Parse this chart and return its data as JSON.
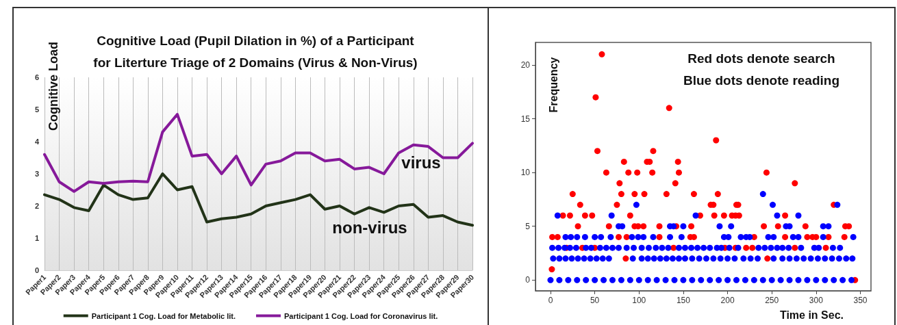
{
  "chart_data": [
    {
      "type": "line",
      "title": "Cognitive Load (Pupil Dilation in %) of a Participant\nfor Literture Triage of 2 Domains (Virus & Non-Virus)",
      "ylabel": "Cognitive Load",
      "categories": [
        "Paper1",
        "Paper2",
        "Paper3",
        "Paper4",
        "Paper5",
        "Paper6",
        "Paper7",
        "Paper8",
        "Paper9",
        "Paper10",
        "Paper11",
        "Paper12",
        "Paper13",
        "Paper14",
        "Paper15",
        "Paper16",
        "Paper17",
        "Paper18",
        "Paper19",
        "Paper20",
        "Paper21",
        "Paper22",
        "Paper23",
        "Paper24",
        "Paper25",
        "Paper26",
        "Paper27",
        "Paper28",
        "Paper29",
        "Paper30"
      ],
      "series": [
        {
          "name": "Participant 1 Cog. Load for Metabolic lit.",
          "color": "#223318",
          "values": [
            2.35,
            2.2,
            1.95,
            1.85,
            2.65,
            2.35,
            2.2,
            2.25,
            3.0,
            2.5,
            2.6,
            1.5,
            1.6,
            1.65,
            1.75,
            2.0,
            2.1,
            2.2,
            2.35,
            1.9,
            2.0,
            1.75,
            1.95,
            1.8,
            2.0,
            2.05,
            1.65,
            1.7,
            1.5,
            1.4
          ]
        },
        {
          "name": "Participant 1 Cog. Load for Coronavirus lit.",
          "color": "#86199a",
          "values": [
            3.6,
            2.75,
            2.45,
            2.75,
            2.7,
            2.75,
            2.77,
            2.75,
            4.3,
            4.85,
            3.55,
            3.6,
            3.0,
            3.55,
            2.65,
            3.3,
            3.4,
            3.65,
            3.65,
            3.4,
            3.45,
            3.15,
            3.2,
            3.0,
            3.65,
            3.9,
            3.85,
            3.5,
            3.5,
            3.95
          ]
        }
      ],
      "ylim": [
        0,
        6
      ],
      "yticks": [
        0,
        1,
        2,
        3,
        4,
        5,
        6
      ],
      "grid": "x",
      "legend": "bottom",
      "marker": "none",
      "line_style": "solid",
      "annotations": [
        "virus",
        "non-virus"
      ]
    },
    {
      "type": "scatter",
      "xlabel": "Time in Sec.",
      "ylabel": "Frequency",
      "series": [
        {
          "color": "#ff0000",
          "x": [
            1.5,
            58,
            51,
            53,
            63,
            25,
            33.5,
            31,
            14,
            22,
            39,
            47,
            78,
            80,
            83,
            88,
            98,
            95,
            106,
            75,
            90,
            66,
            95,
            99,
            105,
            109,
            112,
            116,
            115,
            123,
            134,
            131,
            141,
            144,
            145,
            142,
            162,
            159,
            187,
            189,
            181,
            184,
            185,
            169,
            210,
            212,
            196,
            205,
            209,
            213,
            244,
            241,
            276,
            265,
            257,
            288,
            320,
            333,
            337,
            344,
            85,
            245,
            18,
            36,
            50,
            139,
            197,
            209,
            221,
            228,
            276,
            311,
            2,
            8,
            77,
            86,
            123,
            158,
            162,
            230,
            265,
            290,
            296,
            300,
            314,
            332
          ],
          "values": [
            1,
            21,
            17,
            12,
            10,
            8,
            7,
            5,
            6,
            6,
            6,
            6,
            9,
            8,
            11,
            10,
            10,
            8,
            8,
            7,
            6,
            5,
            5,
            5,
            5,
            11,
            11,
            12,
            10,
            5,
            16,
            8,
            9,
            11,
            10,
            5,
            8,
            5,
            13,
            8,
            7,
            7,
            6,
            6,
            7,
            7,
            6,
            6,
            6,
            6,
            10,
            5,
            9,
            6,
            5,
            5,
            7,
            5,
            5,
            0,
            2,
            2,
            3,
            3,
            3,
            3,
            3,
            3,
            3,
            3,
            3,
            3,
            4,
            4,
            4,
            4,
            4,
            4,
            4,
            4,
            4,
            4,
            4,
            4,
            4,
            4
          ]
        },
        {
          "color": "#0000ff",
          "x": [
            0,
            10,
            20,
            30,
            40,
            50,
            60,
            70,
            80,
            90,
            100,
            110,
            120,
            130,
            140,
            150,
            160,
            170,
            180,
            190,
            200,
            210,
            220,
            230,
            240,
            250,
            260,
            270,
            280,
            290,
            300,
            310,
            320,
            330,
            340,
            3,
            10,
            17,
            24,
            31,
            38,
            45,
            52,
            59,
            66,
            93,
            103,
            110,
            117,
            124,
            131,
            138,
            145,
            152,
            160,
            168,
            176,
            184,
            192,
            200,
            208,
            218,
            226,
            234,
            252,
            262,
            270,
            278,
            286,
            294,
            302,
            310,
            318,
            326,
            334,
            341,
            2,
            9,
            16,
            22,
            29,
            40,
            46,
            56,
            63,
            70,
            77,
            86,
            94,
            103,
            111,
            119,
            126,
            133,
            145,
            152,
            159,
            166,
            173,
            180,
            188,
            193,
            202,
            212,
            235,
            242,
            249,
            256,
            262,
            269,
            283,
            298,
            303,
            319,
            327,
            17,
            23,
            30,
            39,
            50,
            57,
            68,
            92,
            99,
            105,
            116,
            135,
            148,
            196,
            201,
            215,
            221,
            225,
            246,
            252,
            274,
            280,
            308,
            342,
            8,
            69,
            97,
            77,
            81,
            135,
            139,
            150,
            164,
            191,
            204,
            240,
            251,
            256,
            280,
            266,
            270,
            308,
            314,
            324
          ],
          "values": [
            0,
            0,
            0,
            0,
            0,
            0,
            0,
            0,
            0,
            0,
            0,
            0,
            0,
            0,
            0,
            0,
            0,
            0,
            0,
            0,
            0,
            0,
            0,
            0,
            0,
            0,
            0,
            0,
            0,
            0,
            0,
            0,
            0,
            0,
            0,
            2,
            2,
            2,
            2,
            2,
            2,
            2,
            2,
            2,
            2,
            2,
            2,
            2,
            2,
            2,
            2,
            2,
            2,
            2,
            2,
            2,
            2,
            2,
            2,
            2,
            2,
            2,
            2,
            2,
            2,
            2,
            2,
            2,
            2,
            2,
            2,
            2,
            2,
            2,
            2,
            2,
            3,
            3,
            3,
            3,
            3,
            3,
            3,
            3,
            3,
            3,
            3,
            3,
            3,
            3,
            3,
            3,
            3,
            3,
            3,
            3,
            3,
            3,
            3,
            3,
            3,
            3,
            3,
            3,
            3,
            3,
            3,
            3,
            3,
            3,
            3,
            3,
            3,
            3,
            3,
            4,
            4,
            4,
            4,
            4,
            4,
            4,
            4,
            4,
            4,
            4,
            4,
            4,
            4,
            4,
            4,
            4,
            4,
            4,
            4,
            4,
            4,
            4,
            4,
            6,
            6,
            7,
            5,
            5,
            5,
            5,
            5,
            6,
            5,
            5,
            8,
            7,
            6,
            6,
            5,
            5,
            5,
            5,
            7
          ]
        }
      ],
      "xlim": [
        -17,
        362
      ],
      "xticks": [
        0,
        50,
        100,
        150,
        200,
        250,
        300,
        350
      ],
      "ylim": [
        -1,
        22.1
      ],
      "yticks": [
        0,
        5,
        10,
        15,
        20
      ],
      "grid": false,
      "legend": false,
      "marker": "circle",
      "annotations": [
        "Red dots denote search",
        "Blue dots denote reading"
      ]
    }
  ]
}
